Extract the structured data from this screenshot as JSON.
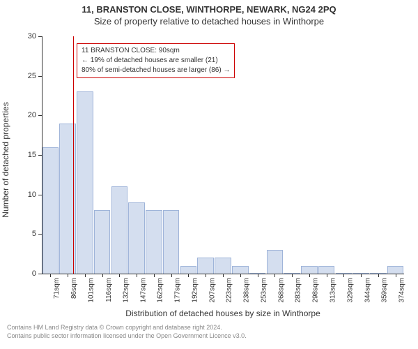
{
  "title_line1": "11, BRANSTON CLOSE, WINTHORPE, NEWARK, NG24 2PQ",
  "title_line2": "Size of property relative to detached houses in Winthorpe",
  "y_axis_label": "Number of detached properties",
  "x_axis_label": "Distribution of detached houses by size in Winthorpe",
  "footer_line1": "Contains HM Land Registry data © Crown copyright and database right 2024.",
  "footer_line2": "Contains public sector information licensed under the Open Government Licence v3.0.",
  "chart": {
    "type": "histogram",
    "ylim": [
      0,
      30
    ],
    "ytick_step": 5,
    "bar_fill": "#d4deef",
    "bar_stroke": "#9fb4d9",
    "background_color": "#ffffff",
    "axis_color": "#333333",
    "categories": [
      "71sqm",
      "86sqm",
      "101sqm",
      "116sqm",
      "132sqm",
      "147sqm",
      "162sqm",
      "177sqm",
      "192sqm",
      "207sqm",
      "223sqm",
      "238sqm",
      "253sqm",
      "268sqm",
      "283sqm",
      "298sqm",
      "313sqm",
      "329sqm",
      "344sqm",
      "359sqm",
      "374sqm"
    ],
    "values": [
      16,
      19,
      23,
      8,
      11,
      9,
      8,
      8,
      1,
      2,
      2,
      1,
      0,
      3,
      0,
      1,
      1,
      0,
      0,
      0,
      1
    ],
    "marker": {
      "position_index": 1.3,
      "color": "#cc0000"
    },
    "annotation": {
      "line1": "11 BRANSTON CLOSE: 90sqm",
      "line2": "← 19% of detached houses are smaller (21)",
      "line3": "80% of semi-detached houses are larger (86) →",
      "border_color": "#cc0000",
      "text_color": "#333333"
    }
  }
}
